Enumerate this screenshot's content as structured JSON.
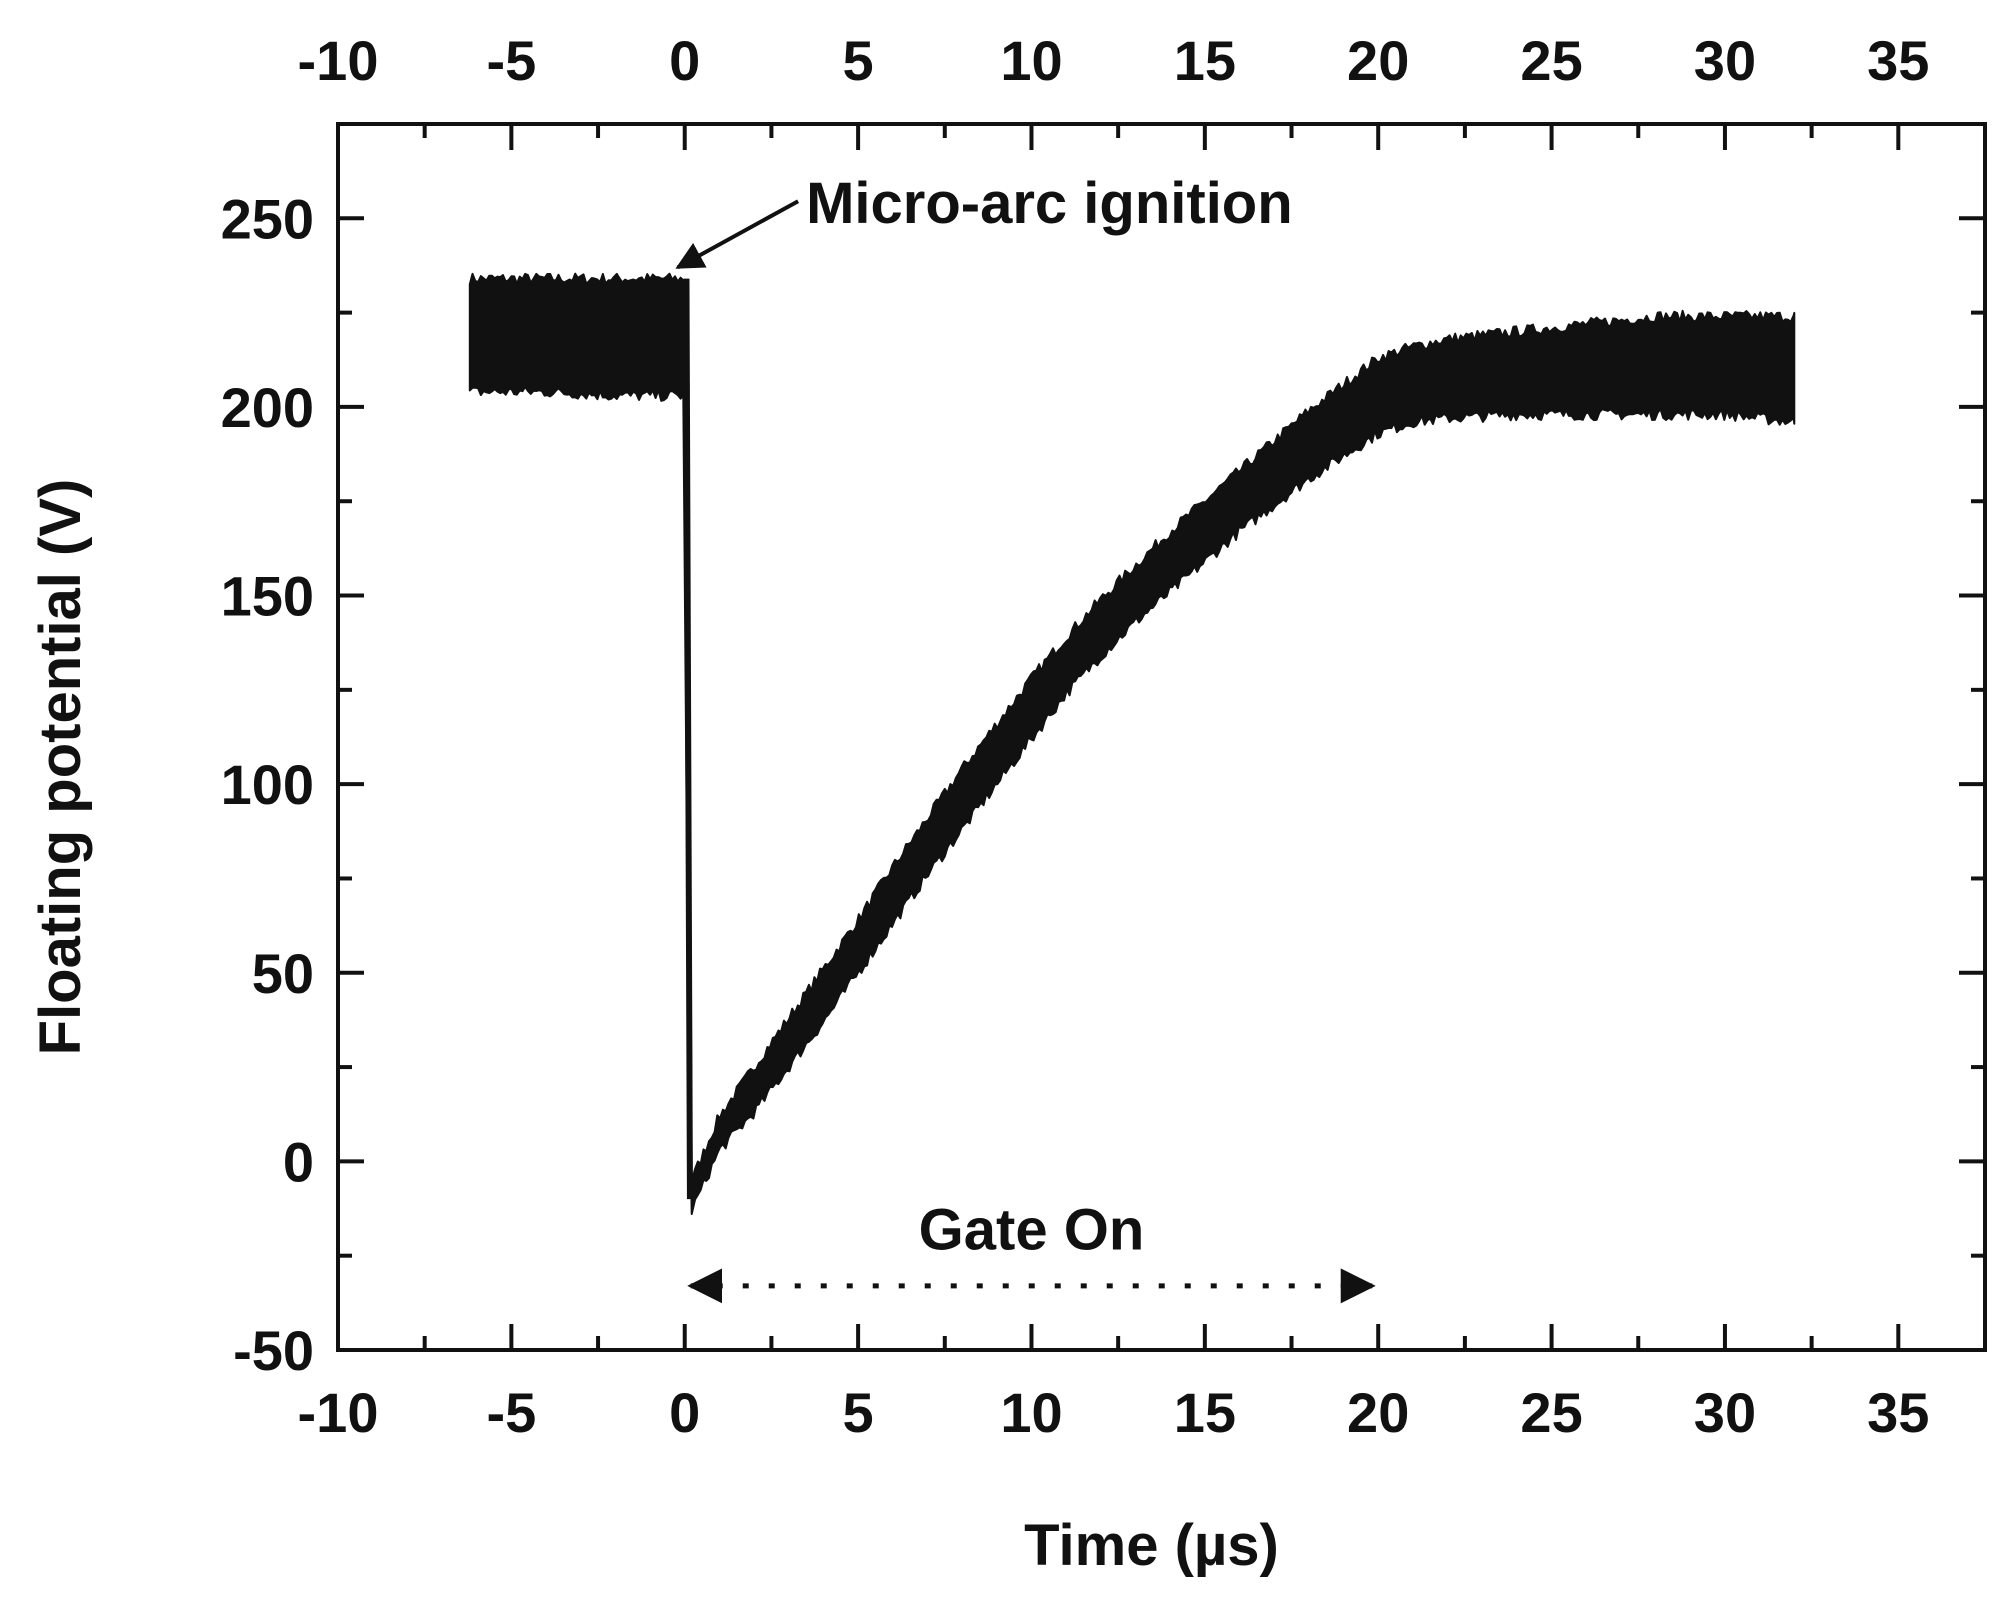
{
  "chart_data": {
    "type": "line",
    "xlabel": "Time (µs)",
    "ylabel": "Floating potential (V)",
    "xlim": [
      -10,
      37.5
    ],
    "ylim": [
      -50,
      275
    ],
    "x_ticks": [
      "-10",
      "-5",
      "0",
      "5",
      "10",
      "15",
      "20",
      "25",
      "30",
      "35"
    ],
    "x_tick_values": [
      -10,
      -5,
      0,
      5,
      10,
      15,
      20,
      25,
      30,
      35
    ],
    "y_ticks": [
      "-50",
      "0",
      "50",
      "100",
      "150",
      "200",
      "250"
    ],
    "y_tick_values": [
      -50,
      0,
      50,
      100,
      150,
      200,
      250
    ],
    "top_axis_ticks": true,
    "grid": false,
    "series_color": "#111111",
    "series": [
      {
        "x": [
          -6.2,
          -4,
          -2,
          0,
          0.1,
          0.2,
          1,
          2,
          3,
          4,
          5,
          6,
          7,
          8,
          9,
          10,
          11,
          12,
          13,
          14,
          15,
          16,
          17,
          18,
          19,
          20,
          21,
          22,
          24,
          26,
          28,
          30,
          32
        ],
        "y_low": [
          204,
          204,
          203,
          203,
          40,
          -13,
          3,
          13,
          25,
          37,
          50,
          63,
          76,
          88,
          100,
          112,
          124,
          134,
          143,
          151,
          159,
          167,
          174,
          181,
          187,
          193,
          196,
          197,
          198,
          198,
          198,
          198,
          196
        ],
        "y_high": [
          234,
          234,
          234,
          234,
          200,
          -5,
          12,
          25,
          38,
          51,
          64,
          78,
          91,
          104,
          116,
          128,
          139,
          149,
          158,
          167,
          175,
          183,
          191,
          199,
          206,
          213,
          216,
          218,
          220,
          222,
          224,
          224,
          224
        ]
      }
    ],
    "annotations": [
      {
        "text": "Micro-arc ignition",
        "arrow_to": [
          -0.2,
          237
        ],
        "text_at": [
          3.5,
          254
        ]
      },
      {
        "text": "Gate On",
        "arrow_from": [
          0,
          -33
        ],
        "arrow_to": [
          20,
          -33
        ],
        "text_at": [
          10,
          -18
        ]
      }
    ]
  }
}
